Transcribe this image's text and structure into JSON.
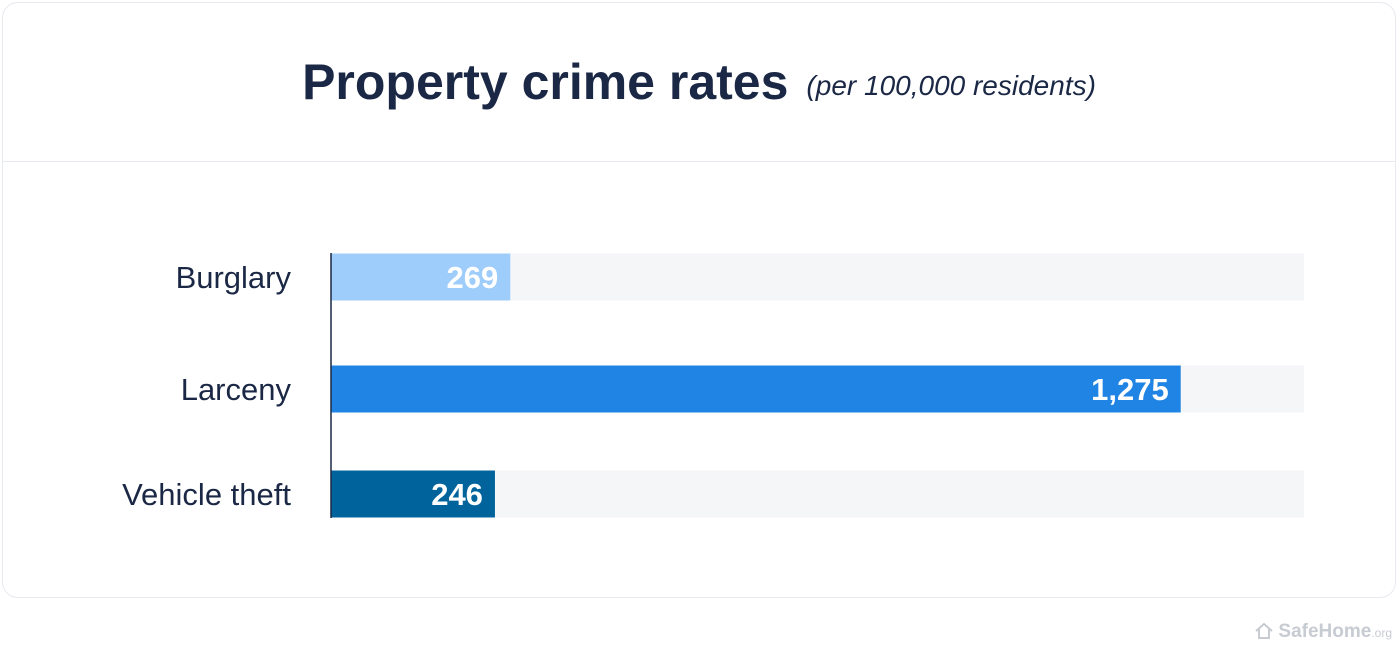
{
  "header": {
    "title": "Property crime rates",
    "subtitle": "(per 100,000 residents)"
  },
  "chart_data": {
    "type": "bar",
    "orientation": "horizontal",
    "title": "Property crime rates",
    "subtitle": "(per 100,000 residents)",
    "categories": [
      "Burglary",
      "Larceny",
      "Vehicle theft"
    ],
    "values": [
      269,
      1275,
      246
    ],
    "value_labels": [
      "269",
      "1,275",
      "246"
    ],
    "colors": [
      "#9fcdfb",
      "#1f84e3",
      "#01639c"
    ],
    "track_color": "#f4f6f8",
    "xlim": [
      0,
      1460
    ],
    "grid": false
  },
  "footer": {
    "logo_main": "SafeHome",
    "logo_tld": ".org",
    "logo_icon": "house-icon"
  }
}
